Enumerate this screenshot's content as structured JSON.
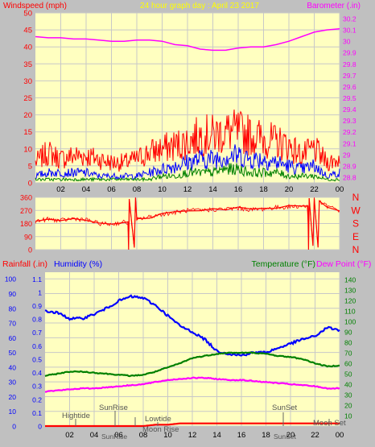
{
  "window": {
    "title": "24 hour graph day : April 23 2017"
  },
  "colors": {
    "panel_bg": "#c0c0c0",
    "plot_bg": "#ffffc0",
    "grid": "#c8c8c8",
    "red": "#ff0000",
    "blue": "#0000ff",
    "green": "#008000",
    "magenta": "#ff00ff",
    "title": "#ffff00",
    "dark_red": "#cc0000"
  },
  "chart_data": [
    {
      "type": "line",
      "title": "24 hour graph day : April 23 2017",
      "left_axis_label": "Windspeed (mph)",
      "right_axis_label": "Barometer (.in)",
      "x_ticks": [
        "02",
        "04",
        "06",
        "08",
        "10",
        "12",
        "14",
        "16",
        "18",
        "20",
        "22",
        "00"
      ],
      "x_range": [
        0,
        24
      ],
      "left_ticks": [
        0,
        5,
        10,
        15,
        20,
        25,
        30,
        35,
        40,
        45,
        50
      ],
      "left_ylim": [
        0,
        50
      ],
      "right_ticks": [
        "28.8",
        "28.9",
        "29",
        "29.1",
        "29.2",
        "29.3",
        "29.4",
        "29.5",
        "29.6",
        "29.7",
        "29.8",
        "29.9",
        "30",
        "30.1",
        "30.2"
      ],
      "right_ylim": [
        28.75,
        30.25
      ],
      "series": [
        {
          "name": "Barometer",
          "color": "#ff00ff",
          "axis": "right",
          "x": [
            0,
            1,
            2,
            3,
            4,
            5,
            6,
            7,
            8,
            9,
            10,
            11,
            12,
            13,
            14,
            15,
            16,
            17,
            18,
            19,
            20,
            21,
            22,
            23,
            24
          ],
          "values": [
            30.04,
            30.03,
            30.03,
            30.02,
            30.02,
            30.01,
            30.0,
            30.0,
            30.01,
            30.01,
            30.0,
            29.97,
            29.96,
            29.93,
            29.92,
            29.92,
            29.94,
            29.95,
            29.95,
            29.97,
            30.0,
            30.04,
            30.08,
            30.1,
            30.11
          ]
        },
        {
          "name": "Gust",
          "color": "#ff0000",
          "axis": "left",
          "x": [
            0,
            1,
            2,
            3,
            4,
            5,
            6,
            7,
            8,
            9,
            10,
            11,
            12,
            13,
            14,
            15,
            16,
            17,
            18,
            19,
            20,
            21,
            22,
            23,
            24
          ],
          "values": [
            6,
            9,
            7,
            8,
            8,
            7,
            6,
            6,
            7,
            9,
            10,
            11,
            12,
            14,
            14,
            15,
            15,
            14,
            13,
            12,
            11,
            8,
            10,
            6,
            7
          ]
        },
        {
          "name": "Average",
          "color": "#0000ff",
          "axis": "left",
          "x": [
            0,
            1,
            2,
            3,
            4,
            5,
            6,
            7,
            8,
            9,
            10,
            11,
            12,
            13,
            14,
            15,
            16,
            17,
            18,
            19,
            20,
            21,
            22,
            23,
            24
          ],
          "values": [
            2,
            3,
            3,
            3,
            3,
            2,
            2,
            2,
            2,
            3,
            4,
            5,
            6,
            7,
            7,
            8,
            8,
            7,
            7,
            6,
            5,
            4,
            5,
            2,
            3
          ]
        },
        {
          "name": "Wind",
          "color": "#008000",
          "axis": "left",
          "x": [
            0,
            1,
            2,
            3,
            4,
            5,
            6,
            7,
            8,
            9,
            10,
            11,
            12,
            13,
            14,
            15,
            16,
            17,
            18,
            19,
            20,
            21,
            22,
            23,
            24
          ],
          "values": [
            1,
            1,
            1,
            1,
            1,
            1,
            1,
            1,
            1,
            1,
            2,
            2,
            3,
            3,
            3,
            4,
            4,
            3,
            3,
            3,
            2,
            2,
            2,
            1,
            1
          ]
        }
      ]
    },
    {
      "type": "line",
      "y_ticks": [
        "360",
        "270",
        "180",
        "90",
        "0"
      ],
      "ylim": [
        0,
        360
      ],
      "compass_labels": [
        "N",
        "W",
        "S",
        "E",
        "N"
      ],
      "x_range": [
        0,
        24
      ],
      "series": [
        {
          "name": "Wind Direction",
          "color": "#ff0000",
          "x": [
            0,
            1,
            2,
            3,
            4,
            5,
            6,
            7,
            7.3,
            7.35,
            7.4,
            7.8,
            7.9,
            8,
            8.1,
            9,
            10,
            11,
            12,
            13,
            14,
            15,
            16,
            17,
            18,
            19,
            20,
            21,
            21.5,
            21.55,
            21.6,
            21.9,
            22.0,
            22.3,
            22.4,
            23,
            24
          ],
          "values": [
            195,
            210,
            200,
            215,
            205,
            180,
            175,
            190,
            185,
            0,
            350,
            10,
            360,
            200,
            210,
            225,
            245,
            255,
            270,
            270,
            275,
            280,
            285,
            275,
            280,
            290,
            295,
            300,
            300,
            0,
            350,
            20,
            360,
            10,
            330,
            300,
            270
          ]
        }
      ]
    },
    {
      "type": "line",
      "left_labels": [
        "Rainfall (.in)",
        "Humidity (%)"
      ],
      "right_labels": [
        "Temperature (°F)",
        "Dew Point (°F)"
      ],
      "x_ticks": [
        "02",
        "04",
        "06",
        "08",
        "10",
        "12",
        "14",
        "16",
        "18",
        "20",
        "22",
        "00"
      ],
      "x_range": [
        0,
        24
      ],
      "rain_ticks": [
        "0",
        "0.1",
        "0.2",
        "0.3",
        "0.4",
        "0.5",
        "0.6",
        "0.7",
        "0.8",
        "0.9",
        "1",
        "1.1"
      ],
      "rain_ylim": [
        0,
        1.15
      ],
      "humidity_ticks": [
        0,
        10,
        20,
        30,
        40,
        50,
        60,
        70,
        80,
        90,
        100
      ],
      "humidity_ylim": [
        0,
        104.5
      ],
      "temp_ticks": [
        10,
        20,
        30,
        40,
        50,
        60,
        70,
        80,
        90,
        100,
        110,
        120,
        130,
        140
      ],
      "temp_ylim": [
        0,
        147
      ],
      "annotations": {
        "hightide": "Hightide",
        "sunrise": "SunRise",
        "lowtide": "Lowtide",
        "moonrise": "Moon Rise",
        "sunset": "SunSet",
        "moonset": "Moon Set",
        "sunrise_bottom": "SunRise",
        "sunset_bottom": "SunSet"
      },
      "series": [
        {
          "name": "Humidity",
          "color": "#0000ff",
          "axis": "humidity",
          "x": [
            0,
            1,
            2,
            3,
            4,
            5,
            6,
            7,
            8,
            9,
            10,
            11,
            12,
            13,
            14,
            15,
            16,
            17,
            18,
            19,
            20,
            21,
            22,
            23,
            24
          ],
          "values": [
            78,
            77,
            73,
            73,
            76,
            80,
            85,
            88,
            87,
            82,
            75,
            68,
            64,
            59,
            51,
            49,
            48,
            50,
            50,
            53,
            56,
            59,
            61,
            67,
            65
          ]
        },
        {
          "name": "Temperature",
          "color": "#008000",
          "axis": "temp",
          "x": [
            0,
            1,
            2,
            3,
            4,
            5,
            6,
            7,
            8,
            9,
            10,
            11,
            12,
            13,
            14,
            15,
            16,
            17,
            18,
            19,
            20,
            21,
            22,
            23,
            24
          ],
          "values": [
            48,
            50,
            52,
            52,
            51,
            50,
            49,
            48,
            49,
            52,
            56,
            60,
            65,
            67,
            69,
            70,
            70,
            70,
            69,
            67,
            66,
            64,
            60,
            57,
            58
          ]
        },
        {
          "name": "Dew Point",
          "color": "#ff00ff",
          "axis": "temp",
          "x": [
            0,
            1,
            2,
            3,
            4,
            5,
            6,
            7,
            8,
            9,
            10,
            11,
            12,
            13,
            14,
            15,
            16,
            17,
            18,
            19,
            20,
            21,
            22,
            23,
            24
          ],
          "values": [
            33,
            34,
            35,
            36,
            36,
            37,
            38,
            39,
            40,
            42,
            44,
            45,
            46,
            46,
            45,
            44,
            44,
            43,
            42,
            41,
            40,
            39,
            38,
            36,
            36
          ]
        },
        {
          "name": "Rainfall",
          "color": "#ff0000",
          "axis": "rain",
          "x": [
            0,
            1,
            2,
            3,
            4,
            5,
            6,
            7,
            8,
            9,
            10,
            11,
            12,
            13,
            14,
            15,
            16,
            17,
            18,
            19,
            20,
            21,
            22,
            23,
            24
          ],
          "values": [
            0,
            0,
            0,
            0,
            0,
            0,
            0,
            0,
            0,
            0.01,
            0.01,
            0.02,
            0.02,
            0.02,
            0.02,
            0.02,
            0.02,
            0.02,
            0.02,
            0.02,
            0.02,
            0.02,
            0.02,
            0.02,
            0.02
          ]
        }
      ]
    }
  ]
}
